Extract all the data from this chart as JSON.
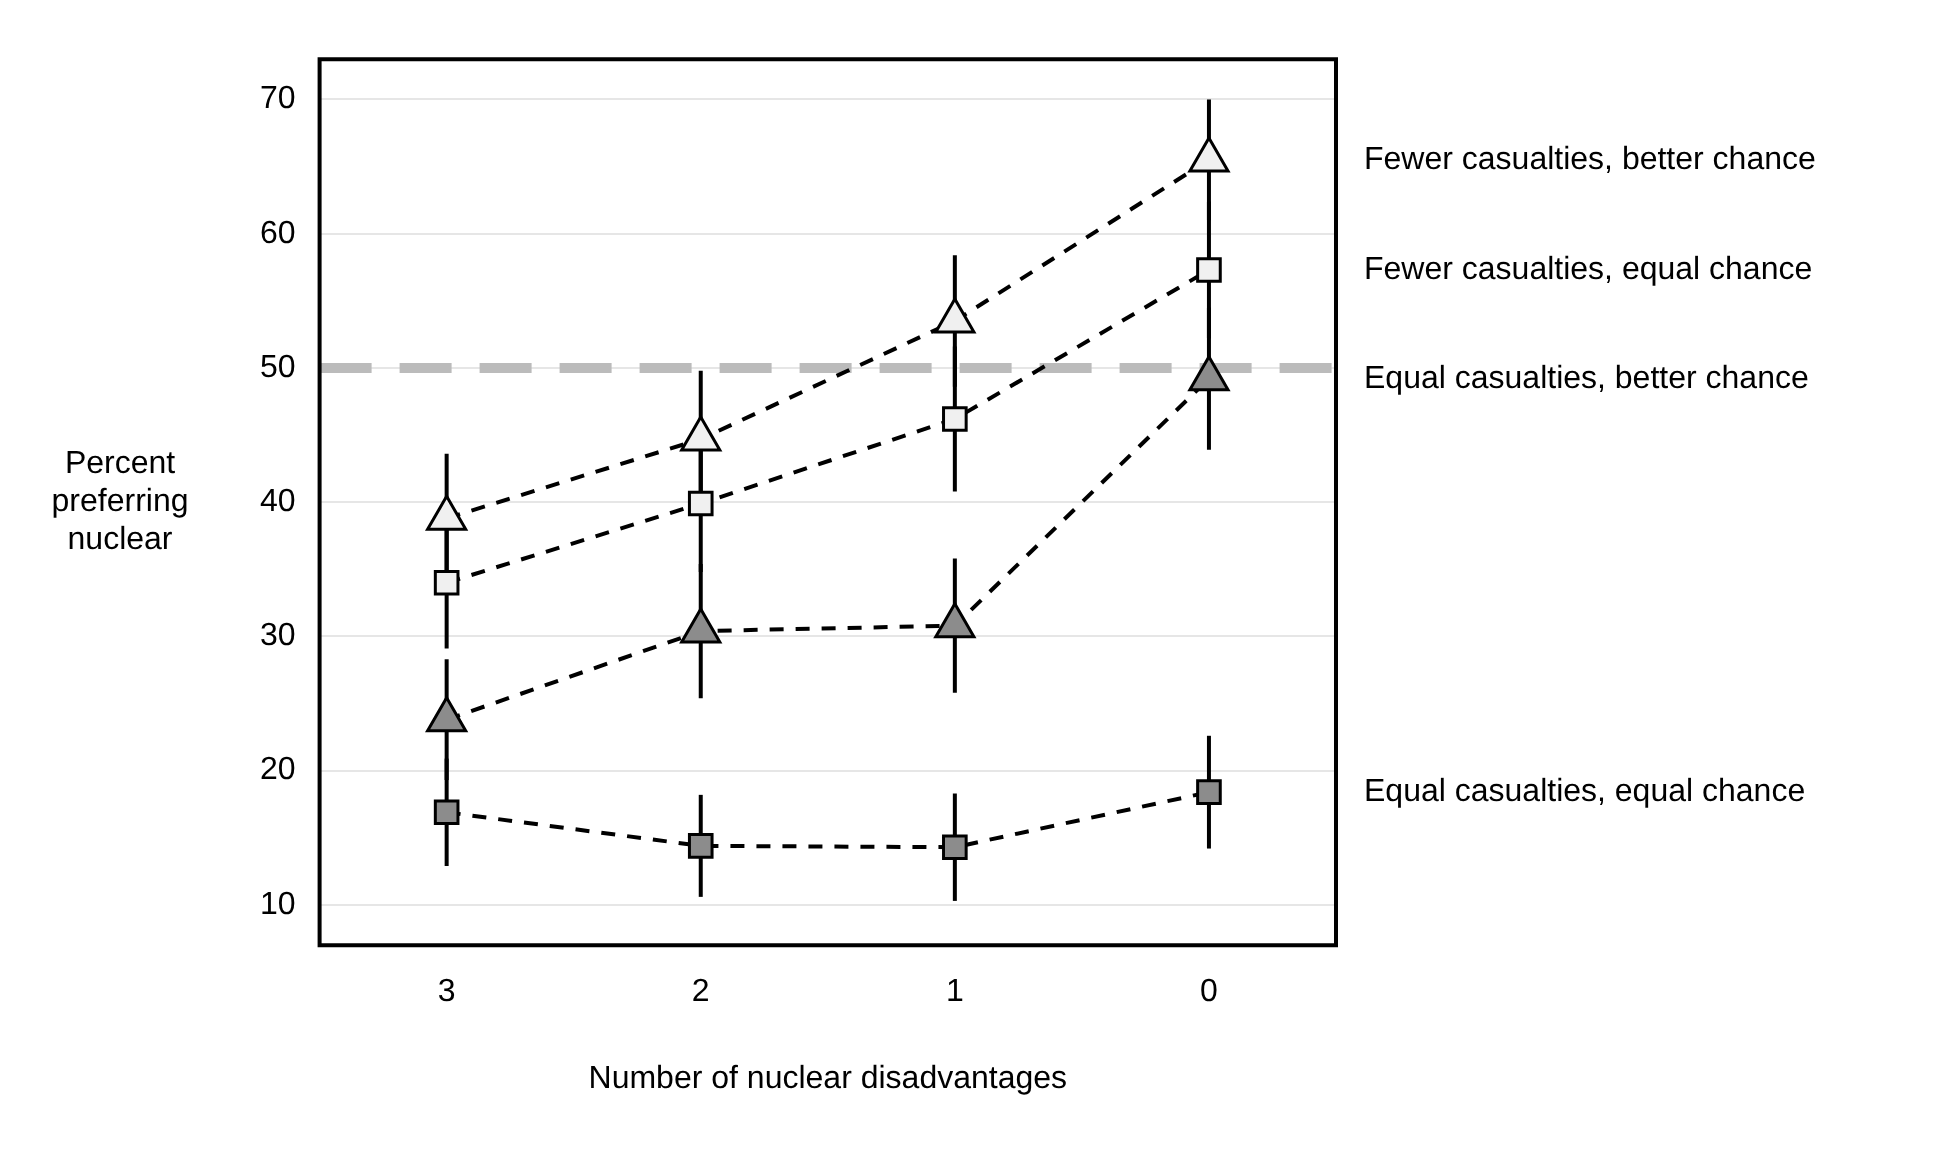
{
  "chart_data": {
    "type": "line",
    "xlabel": "Number of nuclear disadvantages",
    "ylabel": "Percent preferring nuclear",
    "categories": [
      "3",
      "2",
      "1",
      "0"
    ],
    "series": [
      {
        "name": "Fewer casualties, better chance",
        "color": "#f0f0f0",
        "marker": "triangle",
        "values": [
          38.8,
          44.7,
          53.5,
          65.5
        ],
        "errors": [
          4.8,
          5.1,
          4.9,
          4.5
        ]
      },
      {
        "name": "Fewer casualties, equal chance",
        "color": "#f0f0f0",
        "marker": "square",
        "values": [
          34.0,
          39.9,
          46.2,
          57.3
        ],
        "errors": [
          4.9,
          5.1,
          5.4,
          5.1
        ]
      },
      {
        "name": "Equal casualties, better chance",
        "color": "#8c8c8c",
        "marker": "triangle",
        "values": [
          23.8,
          30.4,
          30.8,
          49.2
        ],
        "errors": [
          4.5,
          5.0,
          5.0,
          5.3
        ]
      },
      {
        "name": "Equal casualties, equal chance",
        "color": "#8c8c8c",
        "marker": "square",
        "values": [
          16.9,
          14.4,
          14.3,
          18.4
        ],
        "errors": [
          4.0,
          3.8,
          4.0,
          4.2
        ]
      }
    ],
    "ylim": [
      7,
      73
    ],
    "yticks": [
      10,
      20,
      30,
      40,
      50,
      60,
      70
    ],
    "grid": "y",
    "line_style": "dashed",
    "ref_lines": [
      {
        "axis": "y",
        "value": 50,
        "color": "#bbbbbb",
        "line_style": "dashed"
      }
    ]
  }
}
